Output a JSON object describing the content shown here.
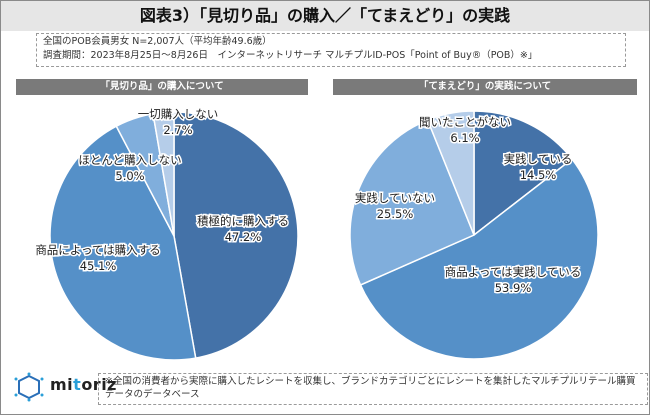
{
  "header": {
    "title": "図表3）「見切り品」の購入／「てまえどり」の実践"
  },
  "survey": {
    "line1": "全国のPOB会員男女 N=2,007人（平均年齢49.6歳）",
    "line2": "調査期間：2023年8月25日～8月26日　インターネットリサーチ マルチプルID-POS「Point of Buy®（POB）※」"
  },
  "footer": {
    "note": "※全国の消費者から実際に購入したレシートを収集し、ブランドカテゴリごとにレシートを集計したマルチプルリテール購買データのデータベース",
    "logo_text_a": "mi",
    "logo_text_b": "t",
    "logo_text_c": "oriz",
    "logo_icon": "network-icon"
  },
  "colors": {
    "dark": "#4472a8",
    "mid": "#5590c8",
    "light": "#80aedc",
    "lighter": "#b5cde9",
    "header_bg": "#7a7a7a",
    "title_bg": "#e6e6e6"
  },
  "chart_data": [
    {
      "type": "pie",
      "title": "「見切り品」の購入について",
      "start": "12 o'clock",
      "direction": "clockwise",
      "slices": [
        {
          "label": "積極的に購入する",
          "value": 47.2,
          "value_label": "47.2%",
          "color": "#4472a8"
        },
        {
          "label": "商品によっては購入する",
          "value": 45.1,
          "value_label": "45.1%",
          "color": "#5590c8"
        },
        {
          "label": "ほとんど購入しない",
          "value": 5.0,
          "value_label": "5.0%",
          "color": "#80aedc"
        },
        {
          "label": "一切購入しない",
          "value": 2.7,
          "value_label": "2.7%",
          "color": "#b5cde9"
        }
      ]
    },
    {
      "type": "pie",
      "title": "「てまえどり」の実践について",
      "start": "12 o'clock",
      "direction": "clockwise",
      "slices": [
        {
          "label": "実践している",
          "value": 14.5,
          "value_label": "14.5%",
          "color": "#4472a8"
        },
        {
          "label": "商品よっては実践している",
          "value": 53.9,
          "value_label": "53.9%",
          "color": "#5590c8"
        },
        {
          "label": "実践していない",
          "value": 25.5,
          "value_label": "25.5%",
          "color": "#80aedc"
        },
        {
          "label": "聞いたことがない",
          "value": 6.1,
          "value_label": "6.1%",
          "color": "#b5cde9"
        }
      ]
    }
  ]
}
